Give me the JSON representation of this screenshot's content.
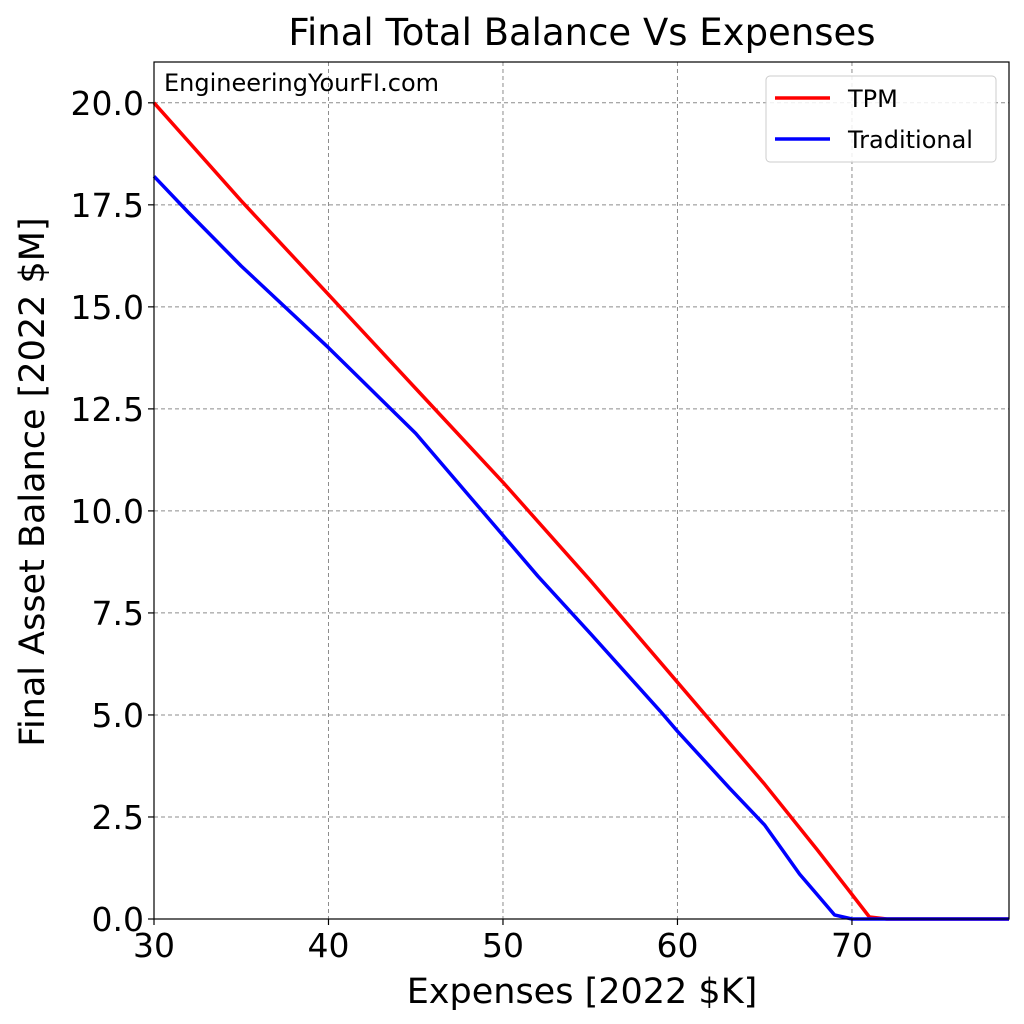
{
  "chart_data": {
    "type": "line",
    "title": "Final Total Balance Vs Expenses",
    "xlabel": "Expenses [2022 $K]",
    "ylabel": "Final Asset Balance [2022 $M]",
    "xlim": [
      30,
      79
    ],
    "ylim": [
      0,
      21
    ],
    "xticks": [
      30,
      40,
      50,
      60,
      70
    ],
    "yticks": [
      0,
      2.5,
      5,
      7.5,
      10,
      12.5,
      15,
      17.5,
      20
    ],
    "xtick_labels": [
      "30",
      "40",
      "50",
      "60",
      "70"
    ],
    "ytick_labels": [
      "0.0",
      "2.5",
      "5.0",
      "7.5",
      "10.0",
      "12.5",
      "15.0",
      "17.5",
      "20.0"
    ],
    "grid": true,
    "legend_position": "top-right",
    "annotation": "EngineeringYourFI.com",
    "series": [
      {
        "name": "TPM",
        "color": "#ff0000",
        "x": [
          30,
          35,
          40,
          45,
          50,
          55,
          60,
          65,
          68,
          70,
          71,
          72,
          79
        ],
        "y": [
          20.0,
          17.6,
          15.3,
          13.0,
          10.7,
          8.3,
          5.8,
          3.3,
          1.7,
          0.6,
          0.05,
          0.0,
          0.0
        ]
      },
      {
        "name": "Traditional",
        "color": "#0000ff",
        "x": [
          30,
          32,
          35,
          40,
          45,
          48,
          50,
          52,
          55,
          59,
          60,
          63,
          65,
          66,
          67,
          68,
          69,
          70,
          79
        ],
        "y": [
          18.2,
          17.3,
          16.0,
          14.0,
          11.9,
          10.4,
          9.4,
          8.4,
          7.0,
          5.1,
          4.6,
          3.2,
          2.3,
          1.7,
          1.1,
          0.6,
          0.1,
          0.0,
          0.0
        ]
      }
    ]
  }
}
